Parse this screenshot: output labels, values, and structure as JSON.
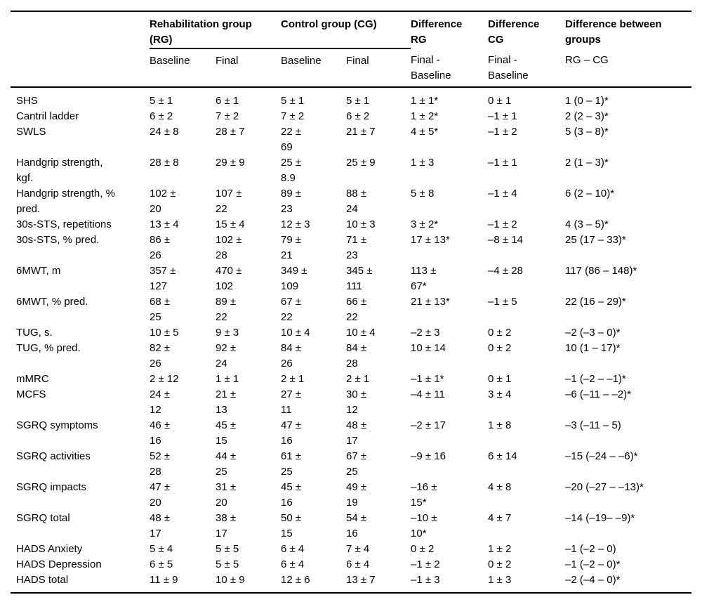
{
  "table": {
    "group_headers": {
      "blank": "",
      "rg": "Rehabilitation group\n(RG)",
      "cg": "Control group (CG)",
      "diff_rg": "Difference\nRG",
      "diff_cg": "Difference\nCG",
      "diff_groups": "Difference between\ngroups"
    },
    "sub_headers": {
      "blank": "",
      "rg_baseline": "Baseline",
      "rg_final": "Final",
      "cg_baseline": "Baseline",
      "cg_final": "Final",
      "diff_rg": "Final -\nBaseline",
      "diff_cg": "Final -\nBaseline",
      "diff_groups": "RG – CG"
    },
    "rows": [
      {
        "label": "SHS",
        "cells": [
          "5 ± 1",
          "6 ± 1",
          "5 ± 1",
          "5 ± 1",
          "1 ± 1*",
          "0 ± 1",
          "1 (0 – 1)*"
        ]
      },
      {
        "label": "Cantril ladder",
        "cells": [
          "6 ± 2",
          "7 ± 2",
          "7 ± 2",
          "6 ± 2",
          "1 ± 2*",
          "–1 ± 1",
          "2 (2 – 3)*"
        ]
      },
      {
        "label": "SWLS",
        "cells": [
          "24 ± 8",
          "28 ± 7",
          "22 ±\n69",
          "21 ± 7",
          "4 ± 5*",
          "–1 ± 2",
          "5 (3 – 8)*"
        ]
      },
      {
        "label": "Handgrip strength,\nkgf.",
        "cells": [
          "28 ± 8",
          "29 ± 9",
          "25 ±\n8.9",
          "25 ± 9",
          "1 ± 3",
          "–1 ± 1",
          "2 (1 – 3)*"
        ]
      },
      {
        "label": "Handgrip strength, %\npred.",
        "cells": [
          "102 ±\n20",
          "107 ±\n22",
          "89 ±\n23",
          "88 ±\n24",
          "5 ± 8",
          "–1 ± 4",
          "6 (2 – 10)*"
        ]
      },
      {
        "label": "30s-STS, repetitions",
        "cells": [
          "13 ± 4",
          "15 ± 4",
          "12 ± 3",
          "10 ± 3",
          "3 ± 2*",
          "–1 ± 2",
          "4 (3 – 5)*"
        ]
      },
      {
        "label": "30s-STS, % pred.",
        "cells": [
          "86 ±\n26",
          "102 ±\n28",
          "79 ±\n21",
          "71 ±\n23",
          "17 ± 13*",
          "–8 ± 14",
          "25 (17 – 33)*"
        ]
      },
      {
        "label": "6MWT, m",
        "cells": [
          "357 ±\n127",
          "470 ±\n102",
          "349 ±\n109",
          "345 ±\n111",
          "113 ±\n67*",
          "–4 ± 28",
          "117 (86 – 148)*"
        ]
      },
      {
        "label": "6MWT, % pred.",
        "cells": [
          "68 ±\n25",
          "89 ±\n22",
          "67 ±\n22",
          "66 ±\n22",
          "21 ± 13*",
          "–1 ± 5",
          "22 (16 – 29)*"
        ]
      },
      {
        "label": "TUG, s.",
        "cells": [
          "10 ± 5",
          "9 ± 3",
          "10 ± 4",
          "10 ± 4",
          "–2 ± 3",
          "0 ± 2",
          "–2 (–3 – 0)*"
        ]
      },
      {
        "label": "TUG, % pred.",
        "cells": [
          "82 ±\n26",
          "92 ±\n24",
          "84 ±\n26",
          "84 ±\n28",
          "10 ± 14",
          "0 ± 2",
          "10 (1 – 17)*"
        ]
      },
      {
        "label": "mMRC",
        "cells": [
          "2 ± 12",
          "1 ± 1",
          "2 ± 1",
          "2 ± 1",
          "–1 ± 1*",
          "0 ± 1",
          "–1 (–2 – –1)*"
        ]
      },
      {
        "label": "MCFS",
        "cells": [
          "24 ±\n12",
          "21 ±\n13",
          "27 ±\n11",
          "30 ±\n12",
          "–4 ± 11",
          "3 ± 4",
          "–6 (–11 – –2)*"
        ]
      },
      {
        "label": "SGRQ symptoms",
        "cells": [
          "46 ±\n16",
          "45 ±\n15",
          "47 ±\n16",
          "48 ±\n17",
          "–2 ± 17",
          "1 ± 8",
          "–3 (–11 – 5)"
        ]
      },
      {
        "label": "SGRQ activities",
        "cells": [
          "52 ±\n28",
          "44 ±\n25",
          "61 ±\n25",
          "67 ±\n25",
          "–9 ± 16",
          "6 ± 14",
          "–15 (–24 – –6)*"
        ]
      },
      {
        "label": "SGRQ impacts",
        "cells": [
          "47 ±\n20",
          "31 ±\n20",
          "45 ±\n16",
          "49 ±\n19",
          "–16 ±\n15*",
          "4 ± 8",
          "–20 (–27 – –13)*"
        ]
      },
      {
        "label": "SGRQ total",
        "cells": [
          "48 ±\n17",
          "38 ±\n17",
          "50 ±\n15",
          "54 ±\n16",
          "–10 ±\n10*",
          "4 ± 7",
          "–14 (–19– –9)*"
        ]
      },
      {
        "label": "HADS Anxiety",
        "cells": [
          "5 ± 4",
          "5 ± 5",
          "6 ± 4",
          "7 ± 4",
          "0 ± 2",
          "1 ± 2",
          "–1 (–2 – 0)"
        ]
      },
      {
        "label": "HADS Depression",
        "cells": [
          "6 ± 5",
          "5 ± 5",
          "6 ± 4",
          "6 ± 4",
          "–1 ± 2",
          "0 ± 2",
          "–1 (–2 – 0)*"
        ]
      },
      {
        "label": "HADS total",
        "cells": [
          "11 ± 9",
          "10 ± 9",
          "12 ± 6",
          "13 ± 7",
          "–1 ± 3",
          "1 ± 3",
          "–2 (–4 – 0)*"
        ]
      }
    ]
  }
}
